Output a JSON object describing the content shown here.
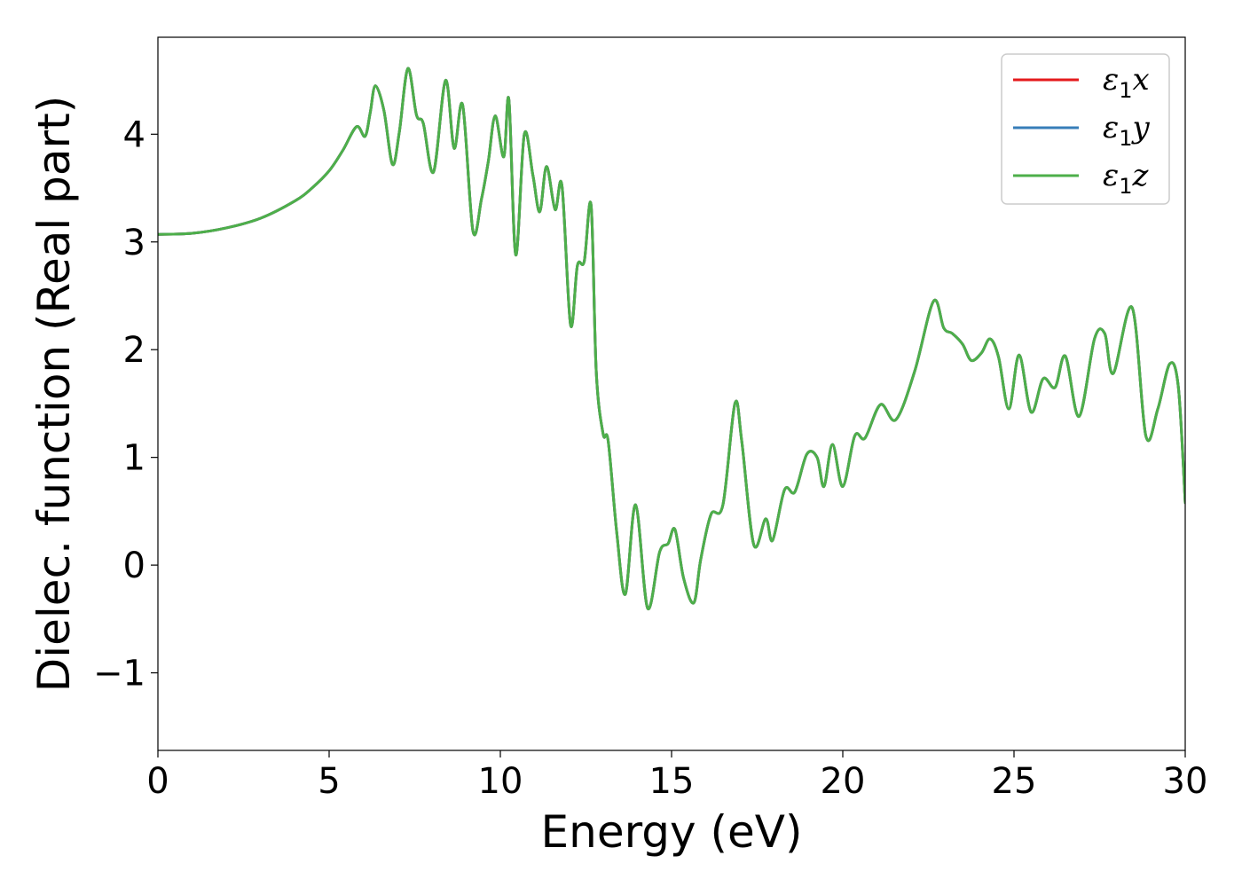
{
  "chart_data": {
    "type": "line",
    "xlabel": "Energy (eV)",
    "ylabel": "Dielec. function (Real part)",
    "xlim": [
      0,
      30
    ],
    "ylim": [
      -1.72,
      4.9
    ],
    "xticks": [
      0,
      5,
      10,
      15,
      20,
      25,
      30
    ],
    "xtick_labels": [
      "0",
      "5",
      "10",
      "15",
      "20",
      "25",
      "30"
    ],
    "yticks": [
      -1,
      0,
      1,
      2,
      3,
      4
    ],
    "ytick_labels": [
      "−1",
      "0",
      "1",
      "2",
      "3",
      "4"
    ],
    "grid": false,
    "legend_position": "top-right",
    "x": [
      0,
      1,
      2,
      3,
      4,
      4.5,
      5,
      5.4,
      5.8,
      6.05,
      6.2,
      6.35,
      6.6,
      6.85,
      7.05,
      7.3,
      7.55,
      7.75,
      8.05,
      8.4,
      8.65,
      8.9,
      9.2,
      9.45,
      9.65,
      9.85,
      10.1,
      10.25,
      10.45,
      10.7,
      10.95,
      11.15,
      11.35,
      11.6,
      11.8,
      12.05,
      12.25,
      12.45,
      12.65,
      12.8,
      13.0,
      13.15,
      13.4,
      13.65,
      13.95,
      14.3,
      14.65,
      14.9,
      15.1,
      15.35,
      15.65,
      15.85,
      16.15,
      16.5,
      16.85,
      17.05,
      17.4,
      17.75,
      17.95,
      18.3,
      18.6,
      18.95,
      19.25,
      19.45,
      19.7,
      20.0,
      20.35,
      20.65,
      21.1,
      21.55,
      22.1,
      22.65,
      22.95,
      23.2,
      23.5,
      23.75,
      24.05,
      24.3,
      24.55,
      24.85,
      25.15,
      25.5,
      25.85,
      26.2,
      26.5,
      26.9,
      27.35,
      27.65,
      27.9,
      28.45,
      28.85,
      29.2,
      29.55,
      29.8,
      30.0
    ],
    "series": [
      {
        "name": "ε1x",
        "color": "#e41a1c",
        "y": [
          3.07,
          3.08,
          3.13,
          3.22,
          3.38,
          3.5,
          3.66,
          3.85,
          4.07,
          3.98,
          4.2,
          4.45,
          4.22,
          3.72,
          4.02,
          4.61,
          4.18,
          4.1,
          3.65,
          4.5,
          3.87,
          4.27,
          3.1,
          3.4,
          3.75,
          4.17,
          3.79,
          4.32,
          2.88,
          4.0,
          3.62,
          3.28,
          3.7,
          3.3,
          3.52,
          2.23,
          2.78,
          2.82,
          3.34,
          1.8,
          1.22,
          1.15,
          0.3,
          -0.27,
          0.56,
          -0.4,
          0.12,
          0.2,
          0.33,
          -0.12,
          -0.35,
          0.05,
          0.47,
          0.56,
          1.5,
          1.15,
          0.19,
          0.43,
          0.23,
          0.7,
          0.68,
          1.03,
          1.0,
          0.73,
          1.12,
          0.73,
          1.2,
          1.18,
          1.49,
          1.35,
          1.8,
          2.45,
          2.2,
          2.15,
          2.05,
          1.9,
          1.97,
          2.1,
          1.93,
          1.45,
          1.95,
          1.42,
          1.73,
          1.65,
          1.94,
          1.38,
          2.1,
          2.15,
          1.78,
          2.39,
          1.2,
          1.45,
          1.87,
          1.65,
          0.58
        ]
      },
      {
        "name": "ε1y",
        "color": "#377eb8",
        "y": [
          3.07,
          3.08,
          3.13,
          3.22,
          3.38,
          3.5,
          3.66,
          3.85,
          4.07,
          3.98,
          4.2,
          4.45,
          4.22,
          3.72,
          4.02,
          4.61,
          4.18,
          4.1,
          3.65,
          4.5,
          3.87,
          4.27,
          3.1,
          3.4,
          3.75,
          4.17,
          3.79,
          4.32,
          2.88,
          4.0,
          3.62,
          3.28,
          3.7,
          3.3,
          3.52,
          2.23,
          2.78,
          2.82,
          3.34,
          1.8,
          1.22,
          1.15,
          0.3,
          -0.27,
          0.56,
          -0.4,
          0.12,
          0.2,
          0.33,
          -0.12,
          -0.35,
          0.05,
          0.47,
          0.56,
          1.5,
          1.15,
          0.19,
          0.43,
          0.23,
          0.7,
          0.68,
          1.03,
          1.0,
          0.73,
          1.12,
          0.73,
          1.2,
          1.18,
          1.49,
          1.35,
          1.8,
          2.45,
          2.2,
          2.15,
          2.05,
          1.9,
          1.97,
          2.1,
          1.93,
          1.45,
          1.95,
          1.42,
          1.73,
          1.65,
          1.94,
          1.38,
          2.1,
          2.15,
          1.78,
          2.39,
          1.2,
          1.45,
          1.87,
          1.65,
          0.58
        ]
      },
      {
        "name": "ε1z",
        "color": "#4daf4a",
        "y": [
          3.07,
          3.08,
          3.13,
          3.22,
          3.38,
          3.5,
          3.66,
          3.85,
          4.07,
          3.98,
          4.2,
          4.45,
          4.22,
          3.72,
          4.02,
          4.61,
          4.18,
          4.1,
          3.65,
          4.5,
          3.87,
          4.27,
          3.1,
          3.4,
          3.75,
          4.17,
          3.79,
          4.32,
          2.88,
          4.0,
          3.62,
          3.28,
          3.7,
          3.3,
          3.52,
          2.23,
          2.78,
          2.82,
          3.34,
          1.8,
          1.22,
          1.15,
          0.3,
          -0.27,
          0.56,
          -0.4,
          0.12,
          0.2,
          0.33,
          -0.12,
          -0.35,
          0.05,
          0.47,
          0.56,
          1.5,
          1.15,
          0.19,
          0.43,
          0.23,
          0.7,
          0.68,
          1.03,
          1.0,
          0.73,
          1.12,
          0.73,
          1.2,
          1.18,
          1.49,
          1.35,
          1.8,
          2.45,
          2.2,
          2.15,
          2.05,
          1.9,
          1.97,
          2.1,
          1.93,
          1.45,
          1.95,
          1.42,
          1.73,
          1.65,
          1.94,
          1.38,
          2.1,
          2.15,
          1.78,
          2.39,
          1.2,
          1.45,
          1.87,
          1.65,
          0.58
        ]
      }
    ],
    "legend": [
      {
        "base": "ε",
        "sub": "1",
        "var": "x"
      },
      {
        "base": "ε",
        "sub": "1",
        "var": "y"
      },
      {
        "base": "ε",
        "sub": "1",
        "var": "z"
      }
    ]
  }
}
